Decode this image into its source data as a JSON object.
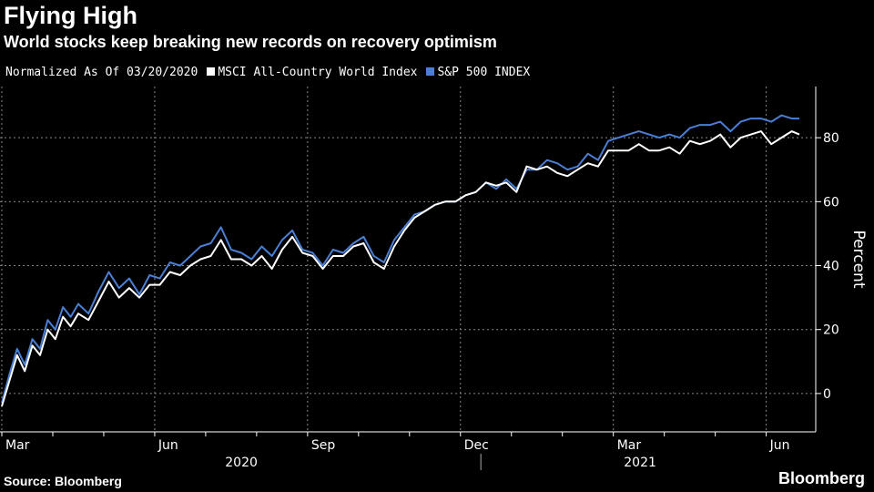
{
  "header": {
    "title": "Flying High",
    "subtitle": "World stocks keep breaking new records on recovery optimism"
  },
  "legend": {
    "note": "Normalized As Of 03/20/2020",
    "items": [
      {
        "label": "MSCI All-Country World Index",
        "color": "#ffffff"
      },
      {
        "label": "S&P 500 INDEX",
        "color": "#4a7fd4"
      }
    ]
  },
  "footer": {
    "source": "Source: Bloomberg",
    "brand": "Bloomberg"
  },
  "chart_data": {
    "type": "line",
    "title": "Flying High",
    "ylabel": "Percent",
    "ylim": [
      -12,
      96
    ],
    "yticks": [
      0,
      20,
      40,
      60,
      80
    ],
    "x_range": [
      "2020-03-20",
      "2021-06-25"
    ],
    "month_ticks": [
      {
        "label": "Mar",
        "month_index": 0
      },
      {
        "label": "Jun",
        "month_index": 3
      },
      {
        "label": "Sep",
        "month_index": 6
      },
      {
        "label": "Dec",
        "month_index": 9
      },
      {
        "label": "Mar",
        "month_index": 12
      },
      {
        "label": "Jun",
        "month_index": 15
      }
    ],
    "year_labels": [
      "2020",
      "2021"
    ],
    "series": [
      {
        "name": "S&P 500 INDEX",
        "color": "#4a7fd4",
        "x_months": [
          0.0,
          0.15,
          0.3,
          0.45,
          0.6,
          0.75,
          0.9,
          1.05,
          1.2,
          1.35,
          1.5,
          1.7,
          1.9,
          2.1,
          2.3,
          2.5,
          2.7,
          2.9,
          3.1,
          3.3,
          3.5,
          3.7,
          3.9,
          4.1,
          4.3,
          4.5,
          4.7,
          4.9,
          5.1,
          5.3,
          5.5,
          5.7,
          5.9,
          6.1,
          6.3,
          6.5,
          6.7,
          6.9,
          7.1,
          7.3,
          7.5,
          7.7,
          7.9,
          8.1,
          8.3,
          8.5,
          8.7,
          8.9,
          9.1,
          9.3,
          9.5,
          9.7,
          9.9,
          10.1,
          10.3,
          10.5,
          10.7,
          10.9,
          11.1,
          11.3,
          11.5,
          11.7,
          11.9,
          12.1,
          12.3,
          12.5,
          12.7,
          12.9,
          13.1,
          13.3,
          13.5,
          13.7,
          13.9,
          14.1,
          14.3,
          14.5,
          14.7,
          14.9,
          15.1,
          15.3,
          15.5,
          15.65
        ],
        "values": [
          -3,
          6,
          14,
          9,
          17,
          14,
          23,
          20,
          27,
          24,
          28,
          25,
          32,
          38,
          33,
          36,
          31,
          37,
          36,
          41,
          40,
          43,
          46,
          47,
          52,
          45,
          44,
          42,
          46,
          43,
          48,
          51,
          45,
          44,
          40,
          45,
          44,
          47,
          49,
          43,
          41,
          48,
          52,
          56,
          57,
          59,
          60,
          60,
          62,
          63,
          66,
          64,
          67,
          64,
          70,
          70,
          73,
          72,
          70,
          71,
          75,
          73,
          79,
          80,
          81,
          82,
          81,
          80,
          81,
          80,
          83,
          84,
          84,
          85,
          82,
          85,
          86,
          86,
          85,
          87,
          86,
          86
        ]
      },
      {
        "name": "MSCI All-Country World Index",
        "color": "#ffffff",
        "x_months": [
          0.0,
          0.15,
          0.3,
          0.45,
          0.6,
          0.75,
          0.9,
          1.05,
          1.2,
          1.35,
          1.5,
          1.7,
          1.9,
          2.1,
          2.3,
          2.5,
          2.7,
          2.9,
          3.1,
          3.3,
          3.5,
          3.7,
          3.9,
          4.1,
          4.3,
          4.5,
          4.7,
          4.9,
          5.1,
          5.3,
          5.5,
          5.7,
          5.9,
          6.1,
          6.3,
          6.5,
          6.7,
          6.9,
          7.1,
          7.3,
          7.5,
          7.7,
          7.9,
          8.1,
          8.3,
          8.5,
          8.7,
          8.9,
          9.1,
          9.3,
          9.5,
          9.7,
          9.9,
          10.1,
          10.3,
          10.5,
          10.7,
          10.9,
          11.1,
          11.3,
          11.5,
          11.7,
          11.9,
          12.1,
          12.3,
          12.5,
          12.7,
          12.9,
          13.1,
          13.3,
          13.5,
          13.7,
          13.9,
          14.1,
          14.3,
          14.5,
          14.7,
          14.9,
          15.1,
          15.3,
          15.5,
          15.65
        ],
        "values": [
          -4,
          4,
          12,
          7,
          15,
          12,
          20,
          17,
          24,
          21,
          25,
          23,
          29,
          35,
          30,
          33,
          30,
          34,
          34,
          38,
          37,
          40,
          42,
          43,
          48,
          42,
          42,
          40,
          43,
          39,
          45,
          49,
          44,
          43,
          39,
          43,
          43,
          46,
          47,
          41,
          39,
          46,
          51,
          55,
          57,
          59,
          60,
          60,
          62,
          63,
          66,
          65,
          66,
          63,
          71,
          70,
          71,
          69,
          68,
          70,
          72,
          71,
          76,
          76,
          76,
          78,
          76,
          76,
          77,
          75,
          79,
          78,
          79,
          81,
          77,
          80,
          81,
          82,
          78,
          80,
          82,
          81
        ]
      }
    ]
  }
}
